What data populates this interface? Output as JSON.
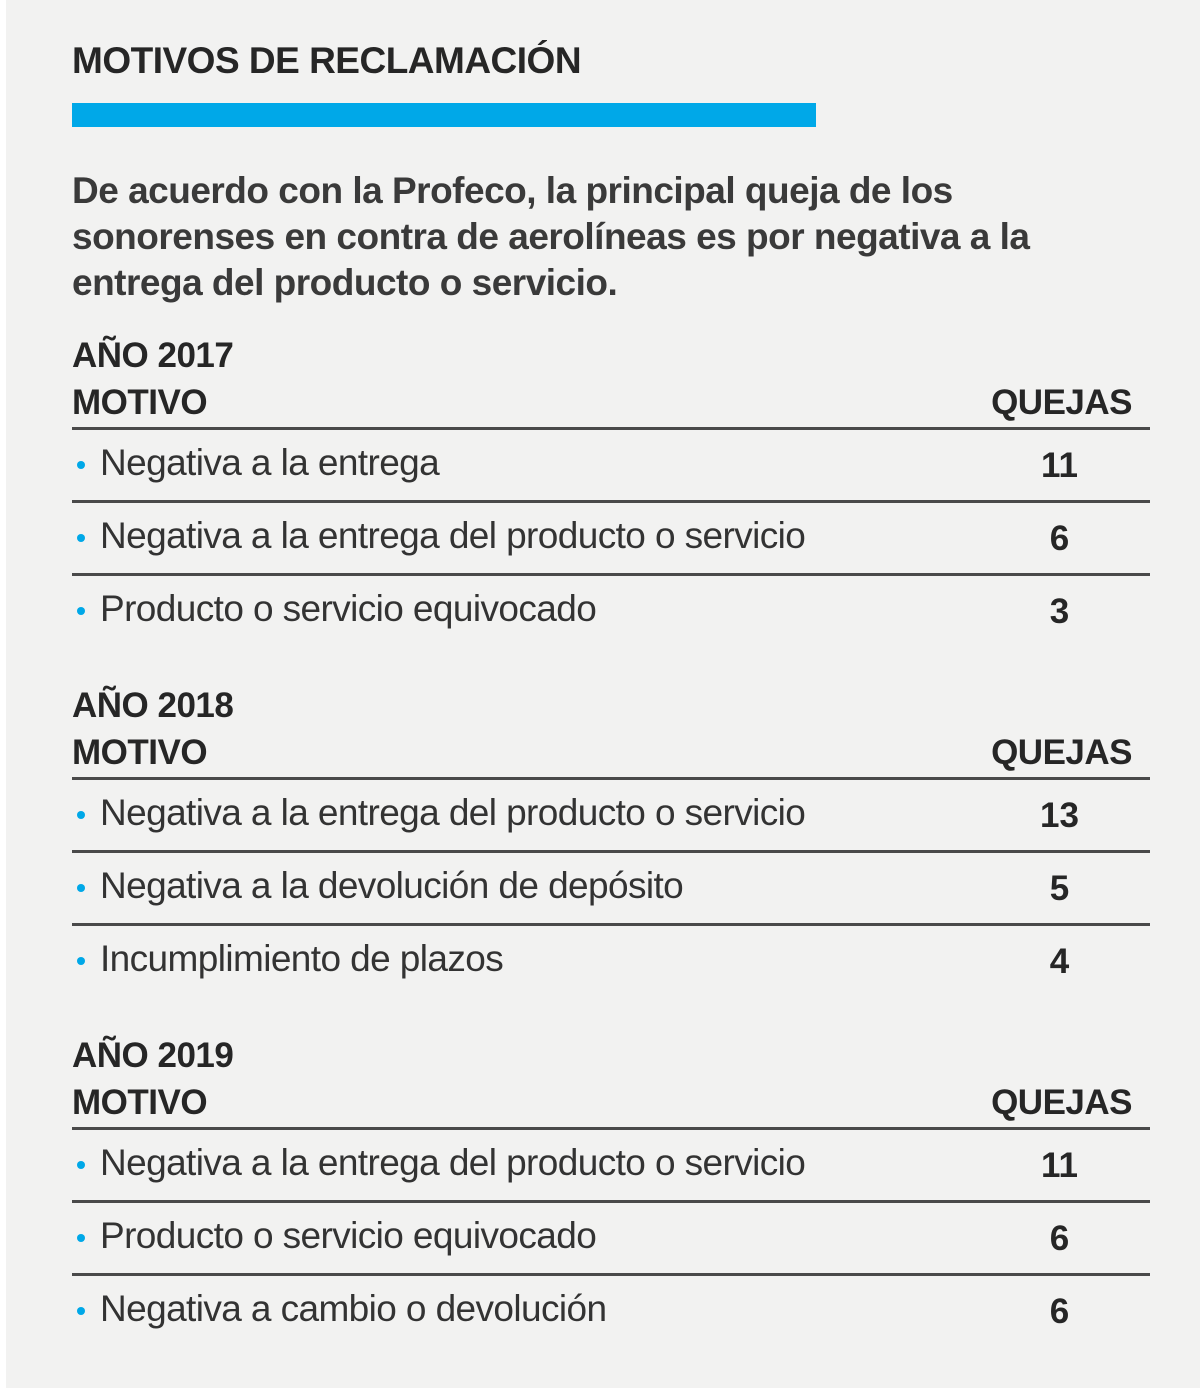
{
  "title": "MOTIVOS DE RECLAMACIÓN",
  "intro": "De acuerdo con la Profeco, la principal queja de los sonorenses en contra de aerolíneas es por negativa a la entrega del producto o servicio.",
  "colors": {
    "accent": "#00a8e8",
    "background": "#f2f2f1"
  },
  "sections": [
    {
      "year": "AÑO 2017",
      "motivo_header": "MOTIVO",
      "quejas_header": "QUEJAS",
      "rows": [
        {
          "motivo": "Negativa a la entrega",
          "quejas": "11"
        },
        {
          "motivo": "Negativa a la entrega del producto o servicio",
          "quejas": "6"
        },
        {
          "motivo": "Producto o servicio equivocado",
          "quejas": "3"
        }
      ]
    },
    {
      "year": "AÑO 2018",
      "motivo_header": "MOTIVO",
      "quejas_header": "QUEJAS",
      "rows": [
        {
          "motivo": "Negativa a la entrega del producto o servicio",
          "quejas": "13"
        },
        {
          "motivo": "Negativa a la devolución de depósito",
          "quejas": "5"
        },
        {
          "motivo": "Incumplimiento de plazos",
          "quejas": "4"
        }
      ]
    },
    {
      "year": "AÑO 2019",
      "motivo_header": "MOTIVO",
      "quejas_header": "QUEJAS",
      "rows": [
        {
          "motivo": "Negativa a la entrega del producto o servicio",
          "quejas": "11"
        },
        {
          "motivo": "Producto o servicio equivocado",
          "quejas": "6"
        },
        {
          "motivo": "Negativa a cambio o devolución",
          "quejas": "6"
        }
      ]
    }
  ]
}
